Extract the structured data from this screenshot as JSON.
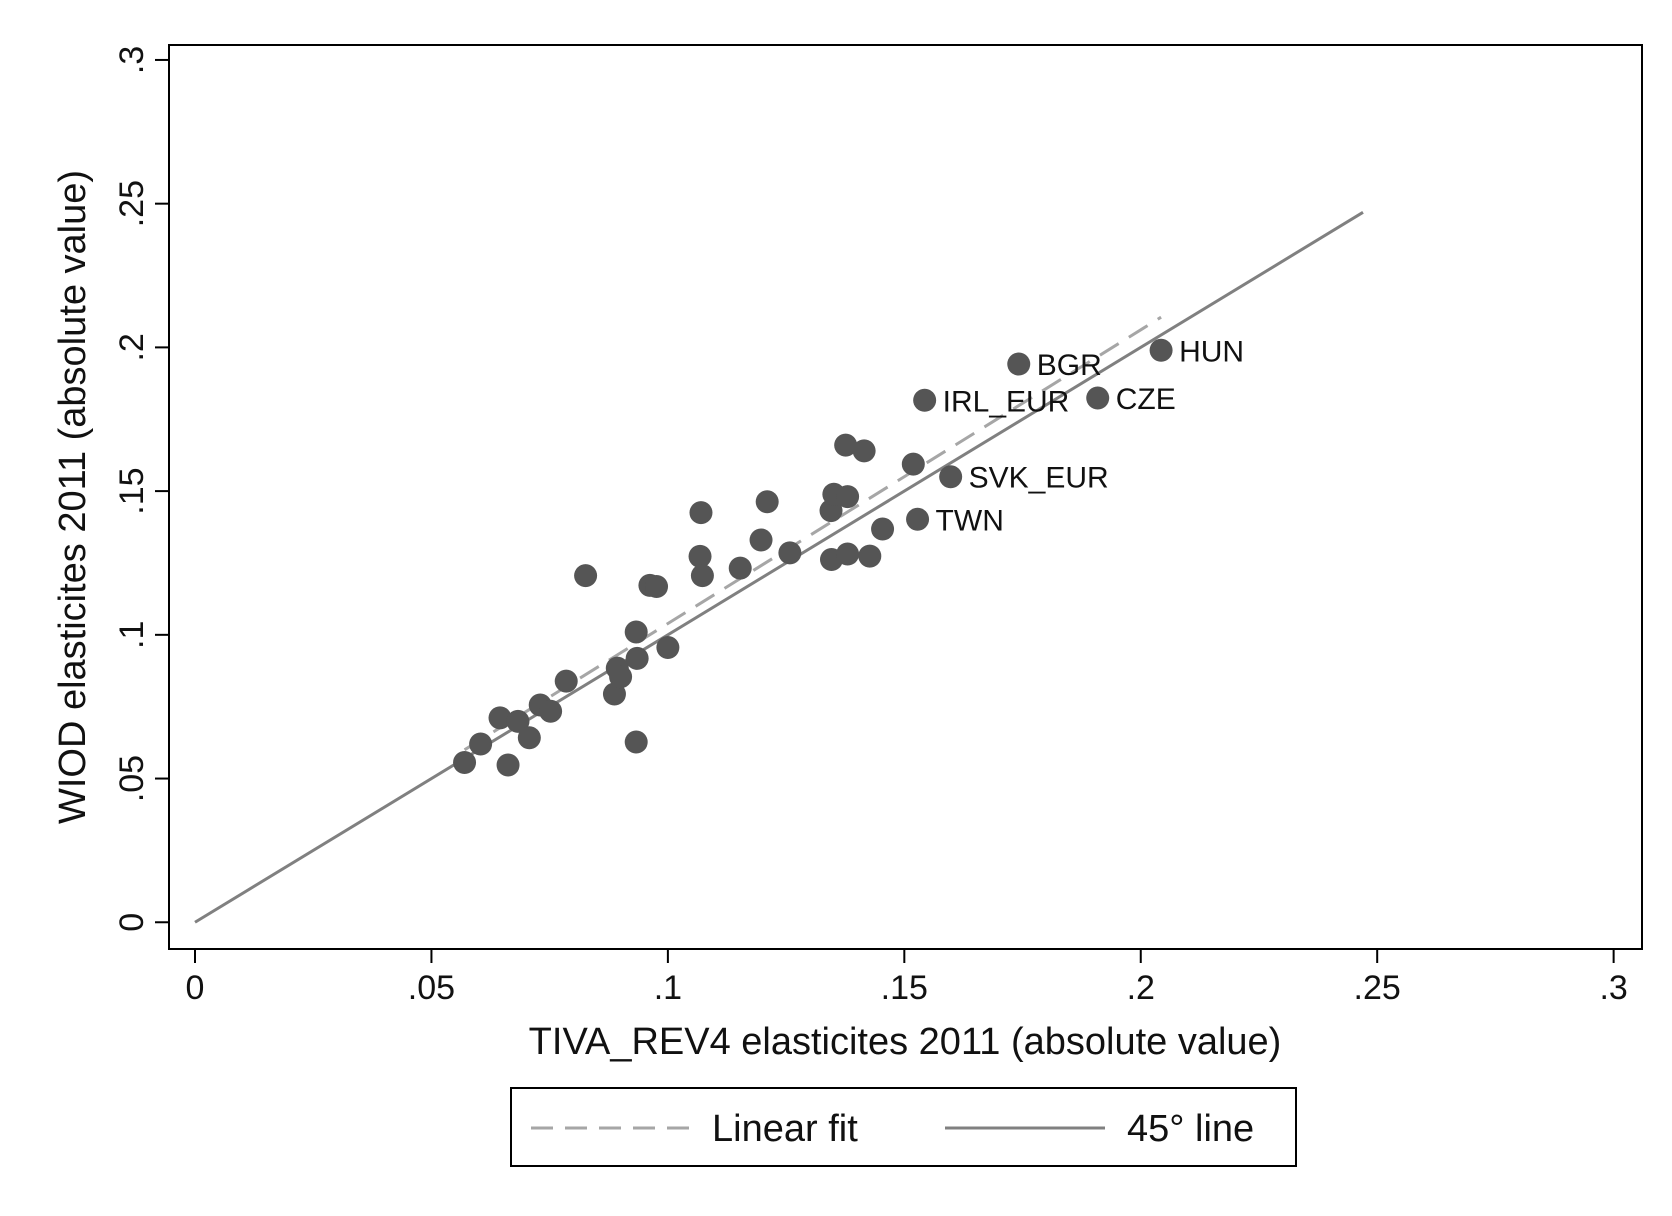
{
  "chart_data": {
    "type": "scatter",
    "title": "",
    "xlabel": "TIVA_REV4 elasticites 2011 (absolute value)",
    "ylabel": "WIOD elasticites 2011 (absolute value)",
    "xlim": [
      -0.0055,
      0.306
    ],
    "ylim": [
      -0.0093,
      0.3052
    ],
    "x_ticks": [
      0,
      0.05,
      0.1,
      0.15,
      0.2,
      0.25,
      0.3
    ],
    "x_tick_labels": [
      "0",
      ".05",
      ".1",
      ".15",
      ".2",
      ".25",
      ".3"
    ],
    "y_ticks": [
      0,
      0.05,
      0.1,
      0.15,
      0.2,
      0.25,
      0.3
    ],
    "y_tick_labels": [
      "0",
      ".05",
      ".1",
      ".15",
      ".2",
      ".25",
      ".3"
    ],
    "grid": false,
    "legend_position": "bottom",
    "colors": {
      "points": "#555555",
      "linear_fit": "#a6a6a6",
      "line45": "#808080",
      "frame": "#000000"
    },
    "series": [
      {
        "name": "",
        "kind": "points",
        "points": [
          {
            "x": 0.057,
            "y": 0.0556
          },
          {
            "x": 0.0604,
            "y": 0.062
          },
          {
            "x": 0.0645,
            "y": 0.0711
          },
          {
            "x": 0.0662,
            "y": 0.0547
          },
          {
            "x": 0.0683,
            "y": 0.0699
          },
          {
            "x": 0.0707,
            "y": 0.0642
          },
          {
            "x": 0.073,
            "y": 0.0756
          },
          {
            "x": 0.0752,
            "y": 0.0734
          },
          {
            "x": 0.0785,
            "y": 0.0839
          },
          {
            "x": 0.0826,
            "y": 0.1206
          },
          {
            "x": 0.0887,
            "y": 0.0794
          },
          {
            "x": 0.0893,
            "y": 0.0884
          },
          {
            "x": 0.09,
            "y": 0.0854
          },
          {
            "x": 0.0933,
            "y": 0.101
          },
          {
            "x": 0.0935,
            "y": 0.0918
          },
          {
            "x": 0.0933,
            "y": 0.0627
          },
          {
            "x": 0.0962,
            "y": 0.1172
          },
          {
            "x": 0.0976,
            "y": 0.1168
          },
          {
            "x": 0.1,
            "y": 0.0956
          },
          {
            "x": 0.1068,
            "y": 0.1273
          },
          {
            "x": 0.107,
            "y": 0.1425
          },
          {
            "x": 0.1073,
            "y": 0.1206
          },
          {
            "x": 0.1153,
            "y": 0.1232
          },
          {
            "x": 0.1197,
            "y": 0.133
          },
          {
            "x": 0.121,
            "y": 0.1463
          },
          {
            "x": 0.1258,
            "y": 0.1285
          },
          {
            "x": 0.1345,
            "y": 0.1432
          },
          {
            "x": 0.1351,
            "y": 0.1489
          },
          {
            "x": 0.1346,
            "y": 0.1262
          },
          {
            "x": 0.1376,
            "y": 0.166
          },
          {
            "x": 0.138,
            "y": 0.1481
          },
          {
            "x": 0.138,
            "y": 0.1281
          },
          {
            "x": 0.1415,
            "y": 0.164
          },
          {
            "x": 0.1427,
            "y": 0.1274
          },
          {
            "x": 0.1454,
            "y": 0.1368
          },
          {
            "x": 0.1519,
            "y": 0.1594
          },
          {
            "x": 0.1528,
            "y": 0.1402
          },
          {
            "x": 0.1543,
            "y": 0.1816,
            "label": "IRL_EUR"
          },
          {
            "x": 0.1598,
            "y": 0.155,
            "label": "SVK_EUR"
          },
          {
            "x": 0.1742,
            "y": 0.1942,
            "label": "BGR"
          },
          {
            "x": 0.1909,
            "y": 0.1824,
            "label": "CZE"
          },
          {
            "x": 0.2043,
            "y": 0.199,
            "label": "HUN"
          }
        ]
      },
      {
        "name": "Linear fit",
        "kind": "line",
        "style": "dashed",
        "x": [
          0.057,
          0.2043
        ],
        "y": [
          0.06,
          0.2105
        ]
      },
      {
        "name": "45° line",
        "kind": "line",
        "style": "solid",
        "x": [
          0,
          0.247
        ],
        "y": [
          0,
          0.247
        ]
      }
    ],
    "annotations": [
      {
        "text": "TWN",
        "x": 0.1528,
        "y": 0.1402
      }
    ]
  }
}
